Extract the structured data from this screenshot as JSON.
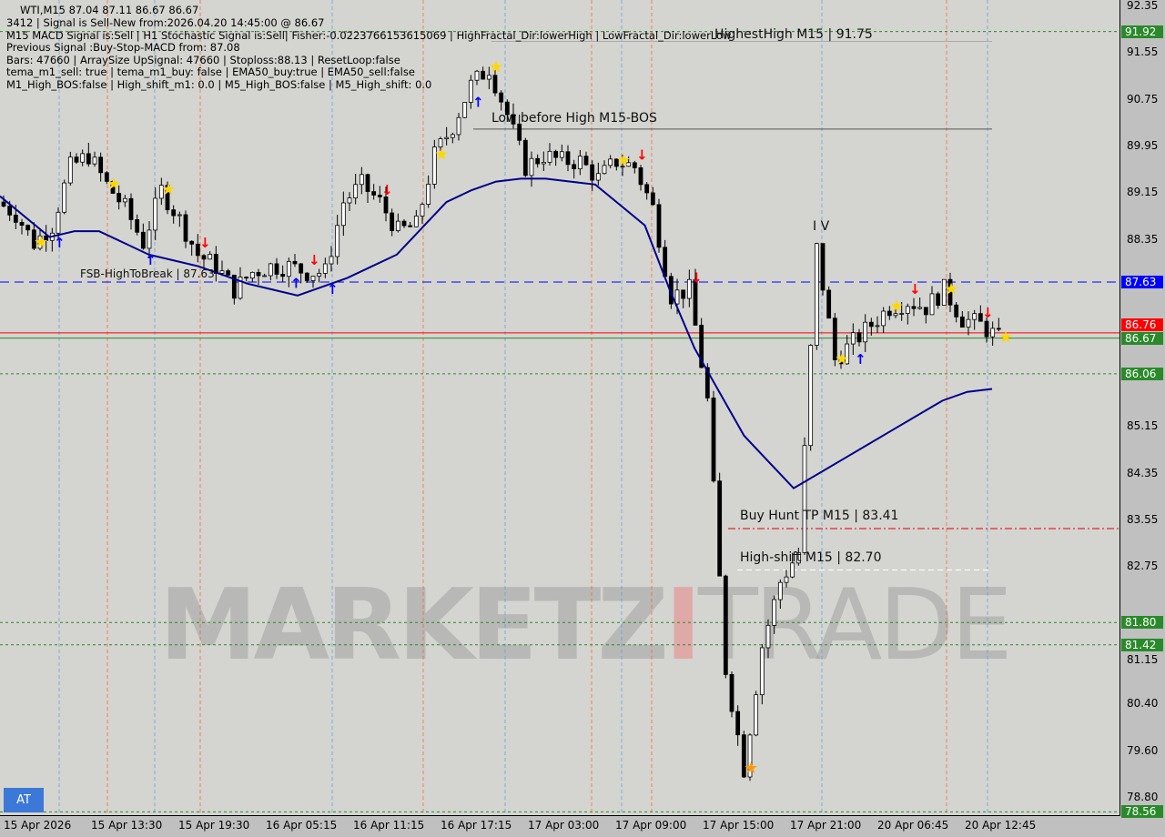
{
  "header": {
    "symbol_line": "WTI,M15  87.04 87.11 86.67 86.67",
    "lines": [
      "3412 | Signal is Sell-New from:2026.04.20 14:45:00 @ 86.67",
      "M15 MACD Signal is:Sell | H1 Stochastic Signal is:Sell| Fisher:-0.0223766153615069 | HighFractal_Dir:lowerHigh | LowFractal_Dir:lowerLow",
      "Previous Signal :Buy-Stop-MACD from: 87.08",
      "Bars: 47660 | ArraySize UpSignal: 47660 | Stoploss:88.13 | ResetLoop:false",
      "tema_m1_sell: true | tema_m1_buy: false | EMA50_buy:true | EMA50_sell:false",
      "M1_High_BOS:false | High_shift_m1: 0.0 | M5_High_BOS:false | M5_High_shift: 0.0"
    ]
  },
  "watermark": {
    "left": "MARKETZ",
    "mid": "I",
    "right": "TRADE"
  },
  "button_at": "AT",
  "chart_data": {
    "type": "candlestick",
    "symbol": "WTI",
    "timeframe": "M15",
    "ylim": [
      78.5,
      92.45
    ],
    "y_ticks": [
      "92.35",
      "91.55",
      "90.75",
      "89.95",
      "89.15",
      "88.35",
      "85.15",
      "84.35",
      "83.55",
      "82.75",
      "81.15",
      "80.40",
      "79.60",
      "78.80"
    ],
    "x_ticks": [
      "15 Apr 2026",
      "15 Apr 13:30",
      "15 Apr 19:30",
      "16 Apr 05:15",
      "16 Apr 11:15",
      "16 Apr 17:15",
      "17 Apr 03:00",
      "17 Apr 09:00",
      "17 Apr 15:00",
      "17 Apr 21:00",
      "20 Apr 06:45",
      "20 Apr 12:45"
    ],
    "close_path": [
      89.0,
      88.8,
      88.3,
      88.6,
      89.6,
      89.8,
      89.3,
      88.9,
      88.3,
      89.2,
      88.7,
      88.1,
      87.9,
      87.5,
      87.8,
      87.9,
      87.9,
      87.8,
      87.8,
      89.0,
      89.3,
      89.0,
      88.5,
      88.6,
      89.8,
      90.3,
      91.0,
      91.3,
      90.5,
      89.6,
      89.8,
      89.7,
      89.7,
      89.4,
      89.7,
      89.6,
      88.9,
      87.4,
      87.5,
      85.6,
      81.0,
      79.3,
      81.4,
      82.5,
      83.0,
      88.2,
      86.3,
      86.6,
      86.9,
      87.2,
      87.3,
      87.2,
      87.5,
      87.0,
      86.9,
      86.67
    ],
    "ema50": [
      89.1,
      88.75,
      88.4,
      88.5,
      88.5,
      88.3,
      88.1,
      88.0,
      87.9,
      87.75,
      87.6,
      87.5,
      87.4,
      87.55,
      87.7,
      87.9,
      88.1,
      88.55,
      89.0,
      89.2,
      89.35,
      89.4,
      89.4,
      89.35,
      89.3,
      88.95,
      88.6,
      87.5,
      86.5,
      85.75,
      85.0,
      84.55,
      84.1,
      84.35,
      84.6,
      84.85,
      85.1,
      85.35,
      85.6,
      85.75,
      85.8
    ],
    "levels": [
      {
        "price": 91.92,
        "label": "91.92",
        "color": "#2a8a2a",
        "style": "dotted"
      },
      {
        "price": 87.63,
        "label": "87.63",
        "color": "#0000ff",
        "style": "dashed"
      },
      {
        "price": 86.76,
        "label": "86.76",
        "color": "#ff0000",
        "style": "solid"
      },
      {
        "price": 86.67,
        "label": "86.67",
        "color": "#2a8a2a",
        "style": "solid"
      },
      {
        "price": 86.06,
        "label": "86.06",
        "color": "#2a8a2a",
        "style": "dotted"
      },
      {
        "price": 81.8,
        "label": "81.80",
        "color": "#2a8a2a",
        "style": "dotted"
      },
      {
        "price": 81.42,
        "label": "81.42",
        "color": "#2a8a2a",
        "style": "dotted"
      },
      {
        "price": 78.56,
        "label": "78.56",
        "color": "#2a8a2a",
        "style": "dotted"
      }
    ],
    "annotations": [
      {
        "text": "HighestHigh   M15 | 91.75",
        "price": 91.75
      },
      {
        "text": "Low before High   M15-BOS",
        "price": 90.25
      },
      {
        "text": "FSB-HighToBreak | 87.63",
        "price": 87.63
      },
      {
        "text": "Buy Hunt TP M15 | 83.41",
        "price": 83.41
      },
      {
        "text": "High-shift M15 | 82.70",
        "price": 82.7
      },
      {
        "text": "I V",
        "price": 88.4
      }
    ],
    "markers": [
      {
        "i": 2,
        "type": "star",
        "color": "#ffd700"
      },
      {
        "i": 6,
        "type": "star",
        "color": "#ffd700"
      },
      {
        "i": 9,
        "type": "star",
        "color": "#ffd700"
      },
      {
        "i": 3,
        "type": "up",
        "color": "#0000ff"
      },
      {
        "i": 8,
        "type": "up",
        "color": "#0000ff"
      },
      {
        "i": 16,
        "type": "up",
        "color": "#0000ff"
      },
      {
        "i": 18,
        "type": "up",
        "color": "#0000ff"
      },
      {
        "i": 11,
        "type": "down",
        "color": "#ff0000"
      },
      {
        "i": 17,
        "type": "down",
        "color": "#ff0000"
      },
      {
        "i": 21,
        "type": "down",
        "color": "#ff0000"
      },
      {
        "i": 24,
        "type": "star",
        "color": "#ffd700"
      },
      {
        "i": 27,
        "type": "star",
        "color": "#ffd700"
      },
      {
        "i": 26,
        "type": "up",
        "color": "#0000ff"
      },
      {
        "i": 34,
        "type": "star",
        "color": "#ffd700"
      },
      {
        "i": 35,
        "type": "down",
        "color": "#ff0000"
      },
      {
        "i": 38,
        "type": "down",
        "color": "#ff0000"
      },
      {
        "i": 41,
        "type": "star",
        "color": "#ff9900"
      },
      {
        "i": 46,
        "type": "star",
        "color": "#ffd700"
      },
      {
        "i": 47,
        "type": "up",
        "color": "#0000ff"
      },
      {
        "i": 49,
        "type": "star",
        "color": "#ffd700"
      },
      {
        "i": 50,
        "type": "down",
        "color": "#ff0000"
      },
      {
        "i": 52,
        "type": "star",
        "color": "#ffd700"
      },
      {
        "i": 54,
        "type": "down",
        "color": "#ff0000"
      },
      {
        "i": 55,
        "type": "star",
        "color": "#ffd700"
      }
    ],
    "colors": {
      "bull": "#000000",
      "bear": "#000000",
      "ema": "#00008b",
      "envelope_red": "#ff4500",
      "envelope_blue": "#4a90e2"
    }
  }
}
